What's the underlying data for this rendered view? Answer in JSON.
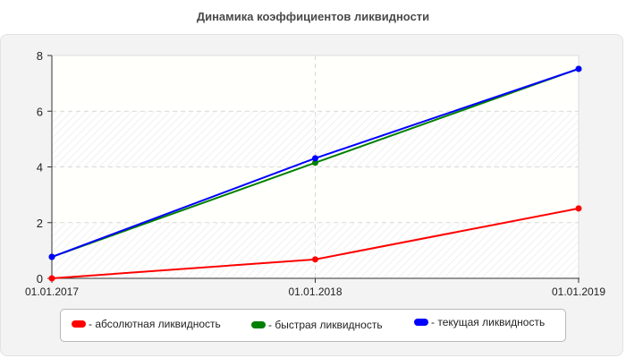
{
  "title": "Динамика коэффициентов ликвидности",
  "chart_data": {
    "type": "line",
    "title": "Динамика коэффициентов ликвидности",
    "x": [
      "01.01.2017",
      "01.01.2018",
      "01.01.2019"
    ],
    "series": [
      {
        "name": "- абсолютная ликвидность",
        "color": "#ff0000",
        "values": [
          0.0,
          0.68,
          2.51
        ]
      },
      {
        "name": "- быстрая ликвидность",
        "color": "#008000",
        "values": [
          0.77,
          4.15,
          7.52
        ]
      },
      {
        "name": "- текущая ликвидность",
        "color": "#0000ff",
        "values": [
          0.77,
          4.31,
          7.52
        ]
      }
    ],
    "xlabel": "",
    "ylabel": "",
    "ylim": [
      0,
      8
    ],
    "yticks": [
      "0",
      "2",
      "4",
      "6",
      "8"
    ],
    "grid": true,
    "legend_position": "bottom"
  }
}
